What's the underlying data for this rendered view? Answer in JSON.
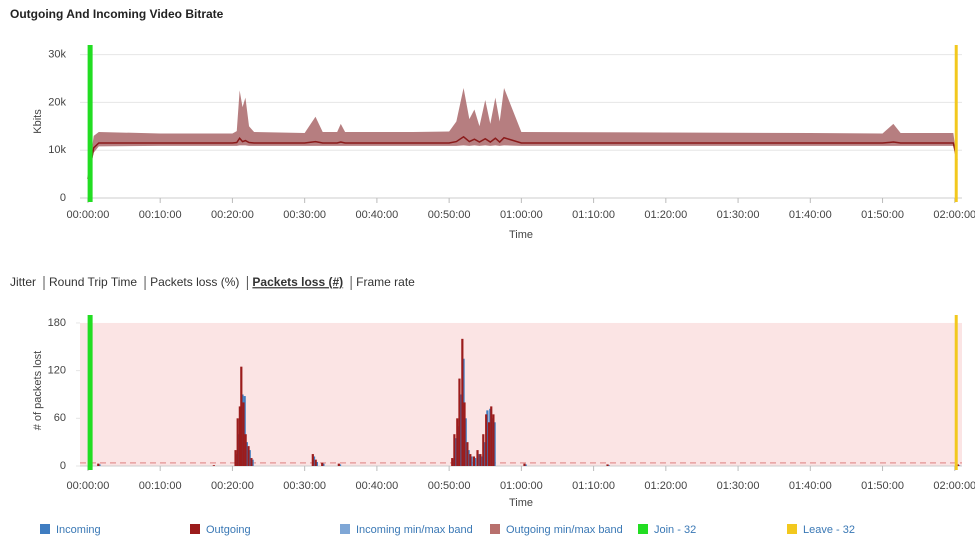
{
  "title": "Outgoing And Incoming Video Bitrate",
  "tabs": [
    "Jitter",
    "Round Trip Time",
    "Packets loss (%)",
    "Packets loss (#)",
    "Frame rate"
  ],
  "active_tab": 3,
  "legend": [
    {
      "name": "Incoming",
      "color": "#3f7dc1"
    },
    {
      "name": "Outgoing",
      "color": "#9b1c1c"
    },
    {
      "name": "Incoming min/max band",
      "color": "#7fa7d6"
    },
    {
      "name": "Outgoing min/max band",
      "color": "#b8706d"
    },
    {
      "name": "Join - 32",
      "color": "#22dd22",
      "x": 0.3
    },
    {
      "name": "Leave - 32",
      "color": "#f2c81e",
      "x": 120.2
    }
  ],
  "chart_data": [
    {
      "type": "line",
      "ylabel": "Kbits",
      "xlabel": "Time",
      "xlim": [
        -1.1,
        121
      ],
      "ylim": [
        0,
        32000
      ],
      "grid": true,
      "yticks": [
        0,
        {
          "value": 10000,
          "label": "10k"
        },
        {
          "value": 20000,
          "label": "20k"
        },
        {
          "value": 30000,
          "label": "30k"
        }
      ],
      "xticks": [
        {
          "value": 0,
          "label": "00:00:00"
        },
        {
          "value": 10,
          "label": "00:10:00"
        },
        {
          "value": 20,
          "label": "00:20:00"
        },
        {
          "value": 30,
          "label": "00:30:00"
        },
        {
          "value": 40,
          "label": "00:40:00"
        },
        {
          "value": 50,
          "label": "00:50:00"
        },
        {
          "value": 60,
          "label": "01:00:00"
        },
        {
          "value": 70,
          "label": "01:10:00"
        },
        {
          "value": 80,
          "label": "01:20:00"
        },
        {
          "value": 90,
          "label": "01:30:00"
        },
        {
          "value": 100,
          "label": "01:40:00"
        },
        {
          "value": 110,
          "label": "01:50:00"
        },
        {
          "value": 120,
          "label": "02:00:00"
        }
      ],
      "x": [
        0,
        0.8,
        1.5,
        10,
        20,
        20.6,
        21,
        21.4,
        21.8,
        22.3,
        23,
        30,
        31.5,
        32.5,
        34.5,
        35,
        35.6,
        45,
        50,
        51,
        52,
        52.8,
        53.5,
        54.2,
        55,
        55.7,
        56.4,
        57,
        57.6,
        60,
        80,
        100,
        110,
        111.5,
        112.5,
        119.8,
        120.3
      ],
      "series": [
        {
          "type": "band",
          "color": "#a9676a",
          "values": [
            4500,
            13000,
            13800,
            13500,
            13500,
            14000,
            22500,
            19000,
            21000,
            15000,
            13800,
            13600,
            17000,
            13800,
            13800,
            15500,
            13800,
            13800,
            13900,
            16000,
            23000,
            16500,
            18500,
            15000,
            20500,
            15500,
            21000,
            16000,
            23000,
            13800,
            13700,
            13600,
            13500,
            15500,
            13600,
            13600,
            8000
          ],
          "low": [
            3500,
            9500,
            10800,
            10900,
            10900,
            10900,
            11000,
            11000,
            11000,
            10900,
            10900,
            10900,
            10900,
            10900,
            10900,
            10900,
            10900,
            10900,
            10900,
            10900,
            11000,
            10900,
            11000,
            10900,
            11000,
            10900,
            11000,
            10900,
            11000,
            10900,
            10900,
            10900,
            10900,
            10900,
            10900,
            10900,
            8000
          ]
        },
        {
          "type": "line",
          "color": "#8b1a1a",
          "values": [
            4000,
            10500,
            11500,
            11500,
            11500,
            11600,
            12500,
            11800,
            12000,
            11600,
            11500,
            11500,
            11800,
            11500,
            11500,
            11700,
            11500,
            11500,
            11500,
            11800,
            12800,
            11800,
            12300,
            11700,
            12400,
            11700,
            12500,
            11700,
            12600,
            11500,
            11500,
            11500,
            11500,
            11700,
            11500,
            11500,
            8000
          ]
        }
      ]
    },
    {
      "type": "bar",
      "ylabel": "# of packets lost",
      "xlabel": "Time",
      "xlim": [
        -1.1,
        121
      ],
      "ylim": [
        0,
        190
      ],
      "grid": false,
      "band": {
        "from": 0,
        "to": 180,
        "color": "#fbe4e4"
      },
      "dashed_line": {
        "value": 4,
        "color": "#e8a0a0"
      },
      "yticks": [
        0,
        60,
        120,
        180
      ],
      "xticks": [
        {
          "value": 0,
          "label": "00:00:00"
        },
        {
          "value": 10,
          "label": "00:10:00"
        },
        {
          "value": 20,
          "label": "00:20:00"
        },
        {
          "value": 30,
          "label": "00:30:00"
        },
        {
          "value": 40,
          "label": "00:40:00"
        },
        {
          "value": 50,
          "label": "00:50:00"
        },
        {
          "value": 60,
          "label": "01:00:00"
        },
        {
          "value": 70,
          "label": "01:10:00"
        },
        {
          "value": 80,
          "label": "01:20:00"
        },
        {
          "value": 90,
          "label": "01:30:00"
        },
        {
          "value": 100,
          "label": "01:40:00"
        },
        {
          "value": 110,
          "label": "01:50:00"
        },
        {
          "value": 120,
          "label": "02:00:00"
        }
      ],
      "x": [
        1.5,
        17.5,
        20.5,
        20.8,
        21.1,
        21.3,
        21.6,
        21.9,
        22.3,
        22.7,
        31.2,
        31.6,
        32.5,
        34.8,
        50.5,
        50.8,
        51.2,
        51.5,
        51.9,
        52.2,
        52.6,
        53,
        53.5,
        54,
        54.4,
        54.8,
        55.2,
        55.6,
        55.9,
        56.2,
        60.5,
        72,
        120.5
      ],
      "series": [
        {
          "type": "bar",
          "color": "#3f7dc1",
          "values": [
            2,
            0,
            15,
            40,
            55,
            90,
            88,
            30,
            20,
            8,
            12,
            5,
            3,
            2,
            8,
            35,
            50,
            90,
            135,
            60,
            20,
            12,
            10,
            15,
            12,
            30,
            70,
            72,
            60,
            55,
            2,
            1,
            1
          ]
        },
        {
          "type": "bar",
          "color": "#9b1c1c",
          "values": [
            3,
            1,
            20,
            60,
            75,
            125,
            80,
            40,
            25,
            10,
            15,
            8,
            4,
            3,
            10,
            40,
            60,
            110,
            160,
            80,
            30,
            15,
            12,
            20,
            15,
            40,
            65,
            55,
            75,
            65,
            3,
            2,
            2
          ]
        }
      ]
    }
  ]
}
